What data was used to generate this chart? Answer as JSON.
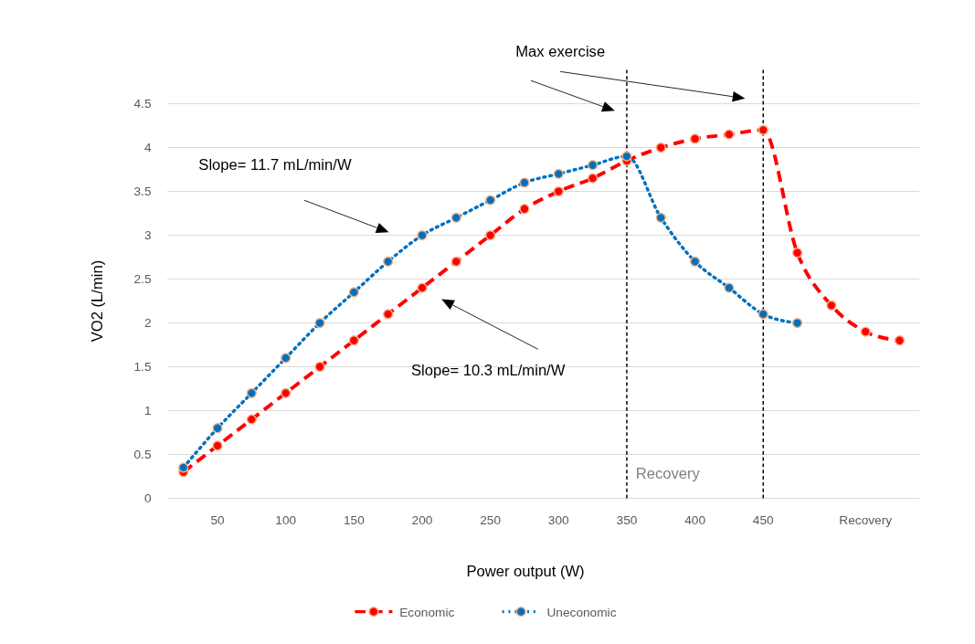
{
  "chart_data": {
    "type": "line",
    "xlabel": "Power output (W)",
    "ylabel": "VO2 (L/min)",
    "categories": [
      null,
      "50",
      null,
      "100",
      null,
      "150",
      null,
      "200",
      null,
      "250",
      null,
      "300",
      null,
      "350",
      null,
      "400",
      null,
      "450",
      null,
      null,
      "Recovery",
      null
    ],
    "series": [
      {
        "name": "Economic",
        "color": "#ff0000",
        "line_style": "dashed",
        "values": [
          0.3,
          0.6,
          0.9,
          1.2,
          1.5,
          1.8,
          2.1,
          2.4,
          2.7,
          3.0,
          3.3,
          3.5,
          3.65,
          3.85,
          4.0,
          4.1,
          4.15,
          4.2,
          2.8,
          2.2,
          1.9,
          1.8
        ]
      },
      {
        "name": "Uneconomic",
        "color": "#0070c0",
        "line_style": "dotted",
        "values": [
          0.35,
          0.8,
          1.2,
          1.6,
          2.0,
          2.35,
          2.7,
          3.0,
          3.2,
          3.4,
          3.6,
          3.7,
          3.8,
          3.9,
          3.2,
          2.7,
          2.4,
          2.1,
          2.0,
          null,
          null,
          null
        ]
      }
    ],
    "ylim": [
      0,
      4.5
    ],
    "yticks": [
      0,
      0.5,
      1,
      1.5,
      2,
      2.5,
      3,
      3.5,
      4,
      4.5
    ],
    "grid": "y",
    "marker": "circle",
    "legend": "bottom",
    "ref_lines": [
      {
        "axis": "x",
        "value": "350",
        "label": "Recovery",
        "color": "#000000",
        "line_style": "dashed"
      },
      {
        "axis": "x",
        "value": "450",
        "color": "#000000",
        "line_style": "dashed"
      }
    ],
    "annotations": [
      "Max exercise",
      "Slope= 11.7 mL/min/W",
      "Slope= 10.3 mL/min/W"
    ]
  }
}
